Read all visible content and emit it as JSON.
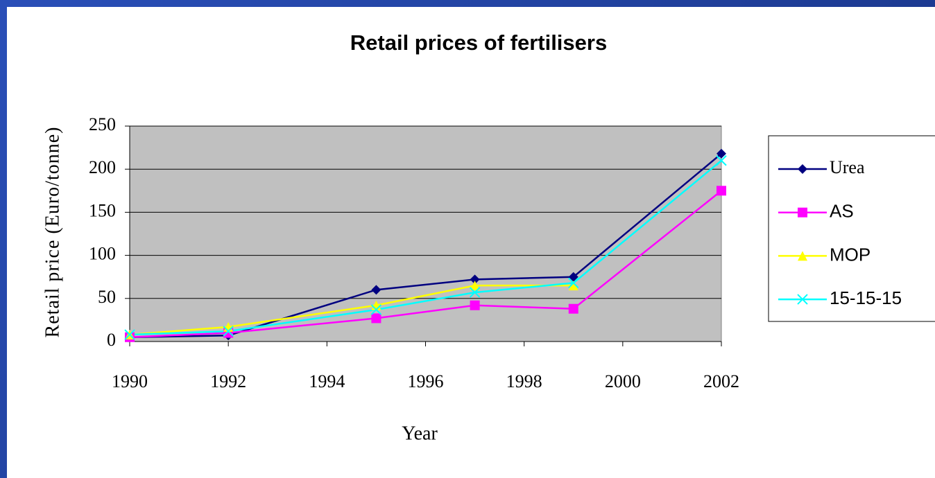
{
  "chart_data": {
    "type": "line",
    "title": "Retail prices of fertilisers",
    "xlabel": "Year",
    "ylabel": "Retail price (Euro/tonne)",
    "x": [
      1990,
      1992,
      1995,
      1997,
      1999,
      2002
    ],
    "series": [
      {
        "name": "Urea",
        "color": "#000080",
        "marker": "diamond",
        "values": [
          5,
          7,
          60,
          72,
          75,
          218
        ]
      },
      {
        "name": "AS",
        "color": "#ff00ff",
        "marker": "square",
        "values": [
          5,
          10,
          27,
          42,
          38,
          175
        ]
      },
      {
        "name": "MOP",
        "color": "#ffff00",
        "marker": "triangle",
        "values": [
          8,
          17,
          42,
          65,
          65,
          null
        ]
      },
      {
        "name": "15-15-15",
        "color": "#00ffff",
        "marker": "x",
        "values": [
          8,
          12,
          37,
          57,
          68,
          210
        ]
      }
    ],
    "xlim": [
      1990,
      2002
    ],
    "xticks": [
      1990,
      1992,
      1994,
      1996,
      1998,
      2000,
      2002
    ],
    "ylim": [
      0,
      250
    ],
    "yticks": [
      0,
      50,
      100,
      150,
      200,
      250
    ],
    "grid": true,
    "plot_background": "#c0c0c0",
    "legend": "right"
  }
}
